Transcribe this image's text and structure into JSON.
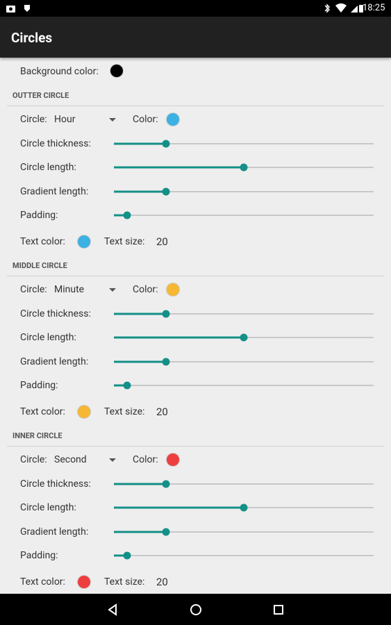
{
  "status_bar": {
    "time": "18:25"
  },
  "app_bar": {
    "title": "Circles"
  },
  "background": {
    "label": "Background color:",
    "color": "#000000"
  },
  "sections": [
    {
      "title": "OUTTER CIRCLE",
      "circle_label": "Circle:",
      "circle_value": "Hour",
      "color_label": "Color:",
      "color": "#3db1e3",
      "sliders": [
        {
          "label": "Circle thickness:",
          "value": 0.2
        },
        {
          "label": "Circle length:",
          "value": 0.5
        },
        {
          "label": "Gradient length:",
          "value": 0.2
        },
        {
          "label": "Padding:",
          "value": 0.05
        }
      ],
      "text_color_label": "Text color:",
      "text_size_label": "Text size:",
      "text_size": 20
    },
    {
      "title": "MIDDLE CIRCLE",
      "circle_label": "Circle:",
      "circle_value": "Minute",
      "color_label": "Color:",
      "color": "#f6b732",
      "sliders": [
        {
          "label": "Circle thickness:",
          "value": 0.2
        },
        {
          "label": "Circle length:",
          "value": 0.5
        },
        {
          "label": "Gradient length:",
          "value": 0.2
        },
        {
          "label": "Padding:",
          "value": 0.05
        }
      ],
      "text_color_label": "Text color:",
      "text_size_label": "Text size:",
      "text_size": 20
    },
    {
      "title": "INNER CIRCLE",
      "circle_label": "Circle:",
      "circle_value": "Second",
      "color_label": "Color:",
      "color": "#ee3f3f",
      "sliders": [
        {
          "label": "Circle thickness:",
          "value": 0.2
        },
        {
          "label": "Circle length:",
          "value": 0.5
        },
        {
          "label": "Gradient length:",
          "value": 0.2
        },
        {
          "label": "Padding:",
          "value": 0.05
        }
      ],
      "text_color_label": "Text color:",
      "text_size_label": "Text size:",
      "text_size": 20
    }
  ]
}
